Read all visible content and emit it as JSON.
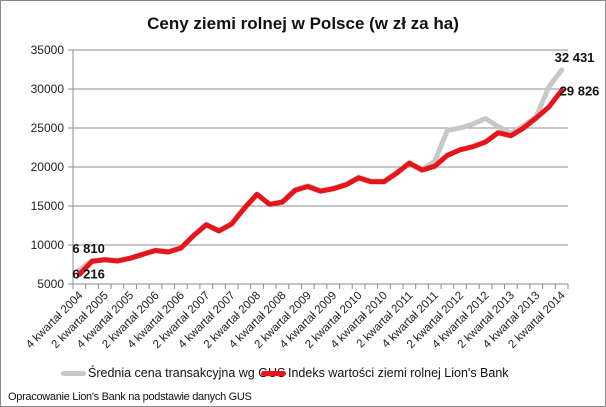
{
  "chart_data": {
    "type": "line",
    "title": "Ceny ziemi rolnej w Polsce (w zł za ha)",
    "xlabel": "",
    "ylabel": "",
    "ylim": [
      5000,
      35000
    ],
    "yticks": [
      5000,
      10000,
      15000,
      20000,
      25000,
      30000,
      35000
    ],
    "grid": true,
    "legend_position": "bottom",
    "x_labels_shown": [
      "4 kwartał 2004",
      "2 kwartał 2005",
      "4 kwartał 2005",
      "2 kwartał 2006",
      "4 kwartał 2006",
      "2 kwartał 2007",
      "4 kwartał 2007",
      "2 kwartał 2008",
      "4 kwartał 2008",
      "2 kwartał 2009",
      "4 kwartał 2009",
      "2 kwartał 2010",
      "4 kwartał 2010",
      "2 kwartał 2011",
      "4 kwartał 2011",
      "2 kwartał 2012",
      "4 kwartał 2012",
      "2 kwartał 2013",
      "4 kwartał 2013",
      "2 kwartał 2014"
    ],
    "x": [
      "4 kw 2004",
      "1 kw 2005",
      "2 kw 2005",
      "3 kw 2005",
      "4 kw 2005",
      "1 kw 2006",
      "2 kw 2006",
      "3 kw 2006",
      "4 kw 2006",
      "1 kw 2007",
      "2 kw 2007",
      "3 kw 2007",
      "4 kw 2007",
      "1 kw 2008",
      "2 kw 2008",
      "3 kw 2008",
      "4 kw 2008",
      "1 kw 2009",
      "2 kw 2009",
      "3 kw 2009",
      "4 kw 2009",
      "1 kw 2010",
      "2 kw 2010",
      "3 kw 2010",
      "4 kw 2010",
      "1 kw 2011",
      "2 kw 2011",
      "3 kw 2011",
      "4 kw 2011",
      "1 kw 2012",
      "2 kw 2012",
      "3 kw 2012",
      "4 kw 2012",
      "1 kw 2013",
      "2 kw 2013",
      "3 kw 2013",
      "4 kw 2013",
      "1 kw 2014",
      "2 kw 2014"
    ],
    "series": [
      {
        "name": "Średnia cena transakcyjna wg GUS",
        "color": "#c8c8c8",
        "values": [
          6810,
          8000,
          8150,
          8000,
          8350,
          8850,
          9350,
          9150,
          9650,
          11250,
          12600,
          11850,
          12750,
          14750,
          16500,
          15250,
          15550,
          17100,
          17600,
          17000,
          17300,
          17800,
          18700,
          18200,
          18200,
          19300,
          20500,
          19700,
          20700,
          24700,
          25000,
          25500,
          26200,
          25200,
          24300,
          25300,
          26500,
          30300,
          32431
        ]
      },
      {
        "name": "Indeks wartości ziemi rolnej Lion's Bank",
        "color": "#e8141c",
        "values": [
          6216,
          7900,
          8100,
          7950,
          8300,
          8800,
          9300,
          9100,
          9600,
          11200,
          12600,
          11800,
          12700,
          14700,
          16500,
          15200,
          15500,
          17000,
          17500,
          16900,
          17200,
          17700,
          18600,
          18100,
          18100,
          19200,
          20500,
          19600,
          20100,
          21500,
          22200,
          22600,
          23200,
          24400,
          24000,
          25000,
          26300,
          27700,
          29826
        ]
      }
    ],
    "annotations": [
      {
        "text": "6 810",
        "series": 0,
        "point": "first"
      },
      {
        "text": "6 216",
        "series": 1,
        "point": "first"
      },
      {
        "text": "32 431",
        "series": 0,
        "point": "last"
      },
      {
        "text": "29 826",
        "series": 1,
        "point": "last"
      }
    ],
    "source_note": "Opracowanie Lion's Bank na podstawie danych GUS"
  },
  "legend": {
    "gus_label": "Średnia cena transakcyjna wg GUS",
    "lions_label": "Indeks wartości ziemi rolnej Lion's Bank"
  },
  "colors": {
    "gus": "#c8c8c8",
    "lions": "#e8141c",
    "grid": "#8c8c8c"
  }
}
